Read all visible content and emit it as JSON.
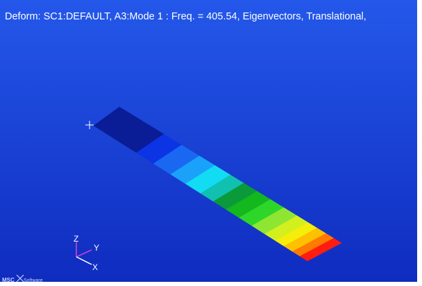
{
  "viewport": {
    "title": "Deform: SC1:DEFAULT, A3:Mode 1 : Freq. = 405.54, Eigenvectors, Translational,"
  },
  "triad": {
    "z": "Z",
    "y": "Y",
    "x": "X"
  },
  "logo": {
    "brand": "MSC",
    "text": "Software"
  }
}
